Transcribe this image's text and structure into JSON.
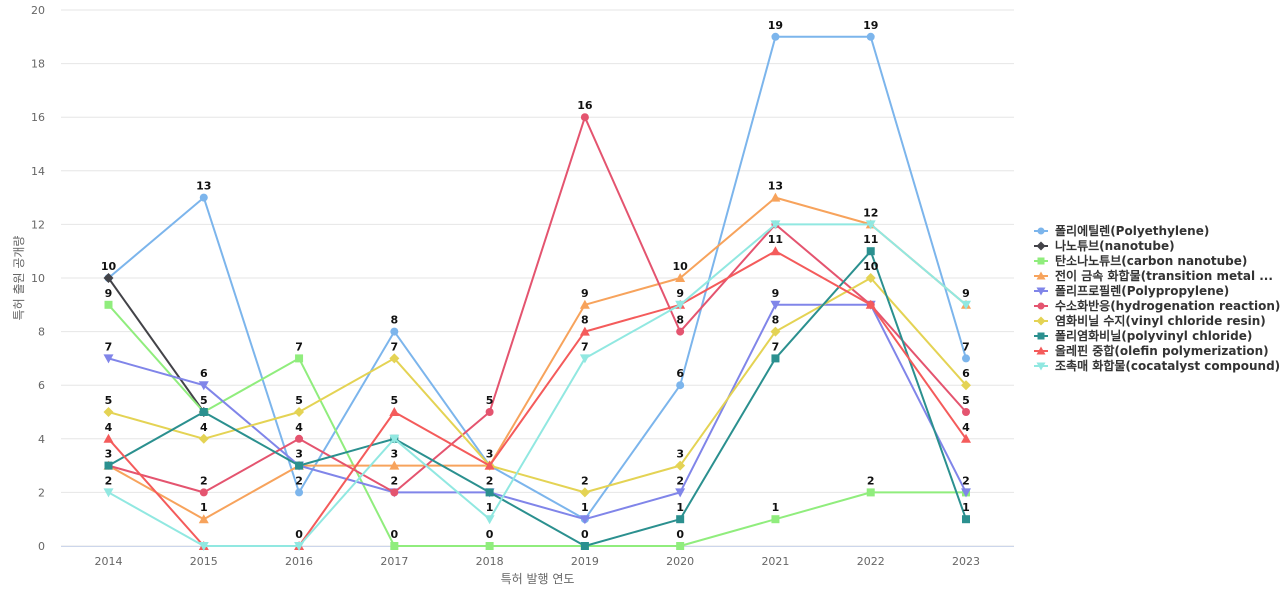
{
  "chart_data": {
    "type": "line",
    "title": "",
    "xlabel": "특허 발행 연도",
    "ylabel": "특허 출원 공개량",
    "x": [
      "2014",
      "2015",
      "2016",
      "2017",
      "2018",
      "2019",
      "2020",
      "2021",
      "2022",
      "2023"
    ],
    "ylim": [
      0,
      20
    ],
    "yticks": [
      0,
      2,
      4,
      6,
      8,
      10,
      12,
      14,
      16,
      18,
      20
    ],
    "grid": true,
    "legend_position": "right",
    "series": [
      {
        "name": "폴리에틸렌(Polyethylene)",
        "color": "#7cb5ec",
        "marker": "circle",
        "values": [
          10,
          13,
          2,
          8,
          3,
          1,
          6,
          19,
          19,
          7
        ],
        "labels_shown": [
          false,
          true,
          true,
          true,
          true,
          true,
          true,
          true,
          true,
          true
        ]
      },
      {
        "name": "나노튜브(nanotube)",
        "color": "#434348",
        "marker": "diamond",
        "values": [
          10,
          5,
          null,
          null,
          null,
          null,
          null,
          null,
          null,
          null
        ],
        "labels_shown": [
          true,
          false,
          false,
          false,
          false,
          false,
          false,
          false,
          false,
          false
        ]
      },
      {
        "name": "탄소나노튜브(carbon nanotube)",
        "color": "#90ed7d",
        "marker": "square",
        "values": [
          9,
          5,
          7,
          0,
          0,
          0,
          0,
          1,
          2,
          2
        ],
        "labels_shown": [
          true,
          false,
          true,
          true,
          true,
          true,
          true,
          true,
          true,
          false
        ]
      },
      {
        "name": "전이 금속 화합물(transition metal ...",
        "color": "#f7a35c",
        "marker": "triangle",
        "values": [
          3,
          1,
          3,
          3,
          3,
          9,
          10,
          13,
          12,
          9
        ],
        "labels_shown": [
          false,
          true,
          false,
          true,
          false,
          true,
          true,
          true,
          true,
          true
        ]
      },
      {
        "name": "폴리프로필렌(Polypropylene)",
        "color": "#8085e9",
        "marker": "triangle-down",
        "values": [
          7,
          6,
          3,
          2,
          2,
          1,
          2,
          9,
          9,
          2
        ],
        "labels_shown": [
          true,
          true,
          false,
          false,
          false,
          false,
          true,
          true,
          false,
          true
        ]
      },
      {
        "name": "수소화반응(hydrogenation reaction)",
        "color": "#e4546f",
        "marker": "circle",
        "values": [
          3,
          2,
          4,
          2,
          5,
          16,
          8,
          12,
          9,
          5
        ],
        "labels_shown": [
          false,
          true,
          true,
          true,
          true,
          true,
          true,
          false,
          false,
          true
        ]
      },
      {
        "name": "염화비닐 수지(vinyl chloride resin)",
        "color": "#e4d354",
        "marker": "diamond",
        "values": [
          5,
          4,
          5,
          7,
          3,
          2,
          3,
          8,
          10,
          6
        ],
        "labels_shown": [
          true,
          true,
          true,
          true,
          false,
          true,
          true,
          true,
          true,
          true
        ]
      },
      {
        "name": "폴리염화비닐(polyvinyl chloride)",
        "color": "#2b908f",
        "marker": "square",
        "values": [
          3,
          5,
          3,
          4,
          2,
          0,
          1,
          7,
          11,
          1
        ],
        "labels_shown": [
          true,
          true,
          true,
          false,
          true,
          false,
          true,
          true,
          true,
          true
        ]
      },
      {
        "name": "올레핀 중합(olefin polymerization)",
        "color": "#f45b5b",
        "marker": "triangle",
        "values": [
          4,
          0,
          0,
          5,
          3,
          8,
          9,
          11,
          9,
          4
        ],
        "labels_shown": [
          true,
          false,
          true,
          true,
          false,
          true,
          false,
          true,
          false,
          true
        ]
      },
      {
        "name": "조촉매 화합물(cocatalyst compound)",
        "color": "#91e8e1",
        "marker": "triangle-down",
        "values": [
          2,
          0,
          0,
          4,
          1,
          7,
          9,
          12,
          12,
          9
        ],
        "labels_shown": [
          true,
          false,
          false,
          false,
          true,
          true,
          true,
          false,
          false,
          false
        ]
      }
    ]
  }
}
